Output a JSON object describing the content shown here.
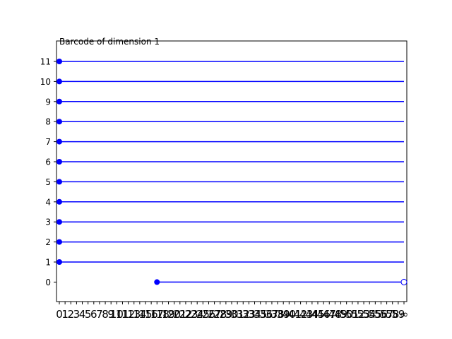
{
  "chart_data": {
    "type": "barcode",
    "title": "Barcode of dimension 1",
    "xlabel": "",
    "ylabel": "",
    "x_tick_labels": [
      "0",
      "1",
      "2",
      "3",
      "4",
      "5",
      "6",
      "7",
      "8",
      "9",
      "10",
      "11",
      "12",
      "13",
      "14",
      "15",
      "16",
      "17",
      "18",
      "19",
      "20",
      "21",
      "22",
      "23",
      "24",
      "25",
      "26",
      "27",
      "28",
      "29",
      "30",
      "31",
      "32",
      "33",
      "34",
      "35",
      "36",
      "37",
      "38",
      "39",
      "40",
      "41",
      "42",
      "43",
      "44",
      "45",
      "46",
      "47",
      "48",
      "49",
      "50",
      "51",
      "52",
      "53",
      "54",
      "55",
      "56",
      "57",
      "58",
      "59",
      "∞"
    ],
    "y_tick_labels": [
      "0",
      "1",
      "2",
      "3",
      "4",
      "5",
      "6",
      "7",
      "8",
      "9",
      "10",
      "11"
    ],
    "xlim": [
      0,
      60
    ],
    "ylim": [
      -1,
      12
    ],
    "grid": false,
    "colors": {
      "bar": "#0000ff",
      "axes": "#000000"
    },
    "bars": [
      {
        "y": 0,
        "birth": 17,
        "death": 60,
        "death_open": true
      },
      {
        "y": 1,
        "birth": 0,
        "death": 60,
        "death_open": false
      },
      {
        "y": 2,
        "birth": 0,
        "death": 60,
        "death_open": false
      },
      {
        "y": 3,
        "birth": 0,
        "death": 60,
        "death_open": false
      },
      {
        "y": 4,
        "birth": 0,
        "death": 60,
        "death_open": false
      },
      {
        "y": 5,
        "birth": 0,
        "death": 60,
        "death_open": false
      },
      {
        "y": 6,
        "birth": 0,
        "death": 60,
        "death_open": false
      },
      {
        "y": 7,
        "birth": 0,
        "death": 60,
        "death_open": false
      },
      {
        "y": 8,
        "birth": 0,
        "death": 60,
        "death_open": false
      },
      {
        "y": 9,
        "birth": 0,
        "death": 60,
        "death_open": false
      },
      {
        "y": 10,
        "birth": 0,
        "death": 60,
        "death_open": false
      },
      {
        "y": 11,
        "birth": 0,
        "death": 60,
        "death_open": false
      }
    ]
  }
}
